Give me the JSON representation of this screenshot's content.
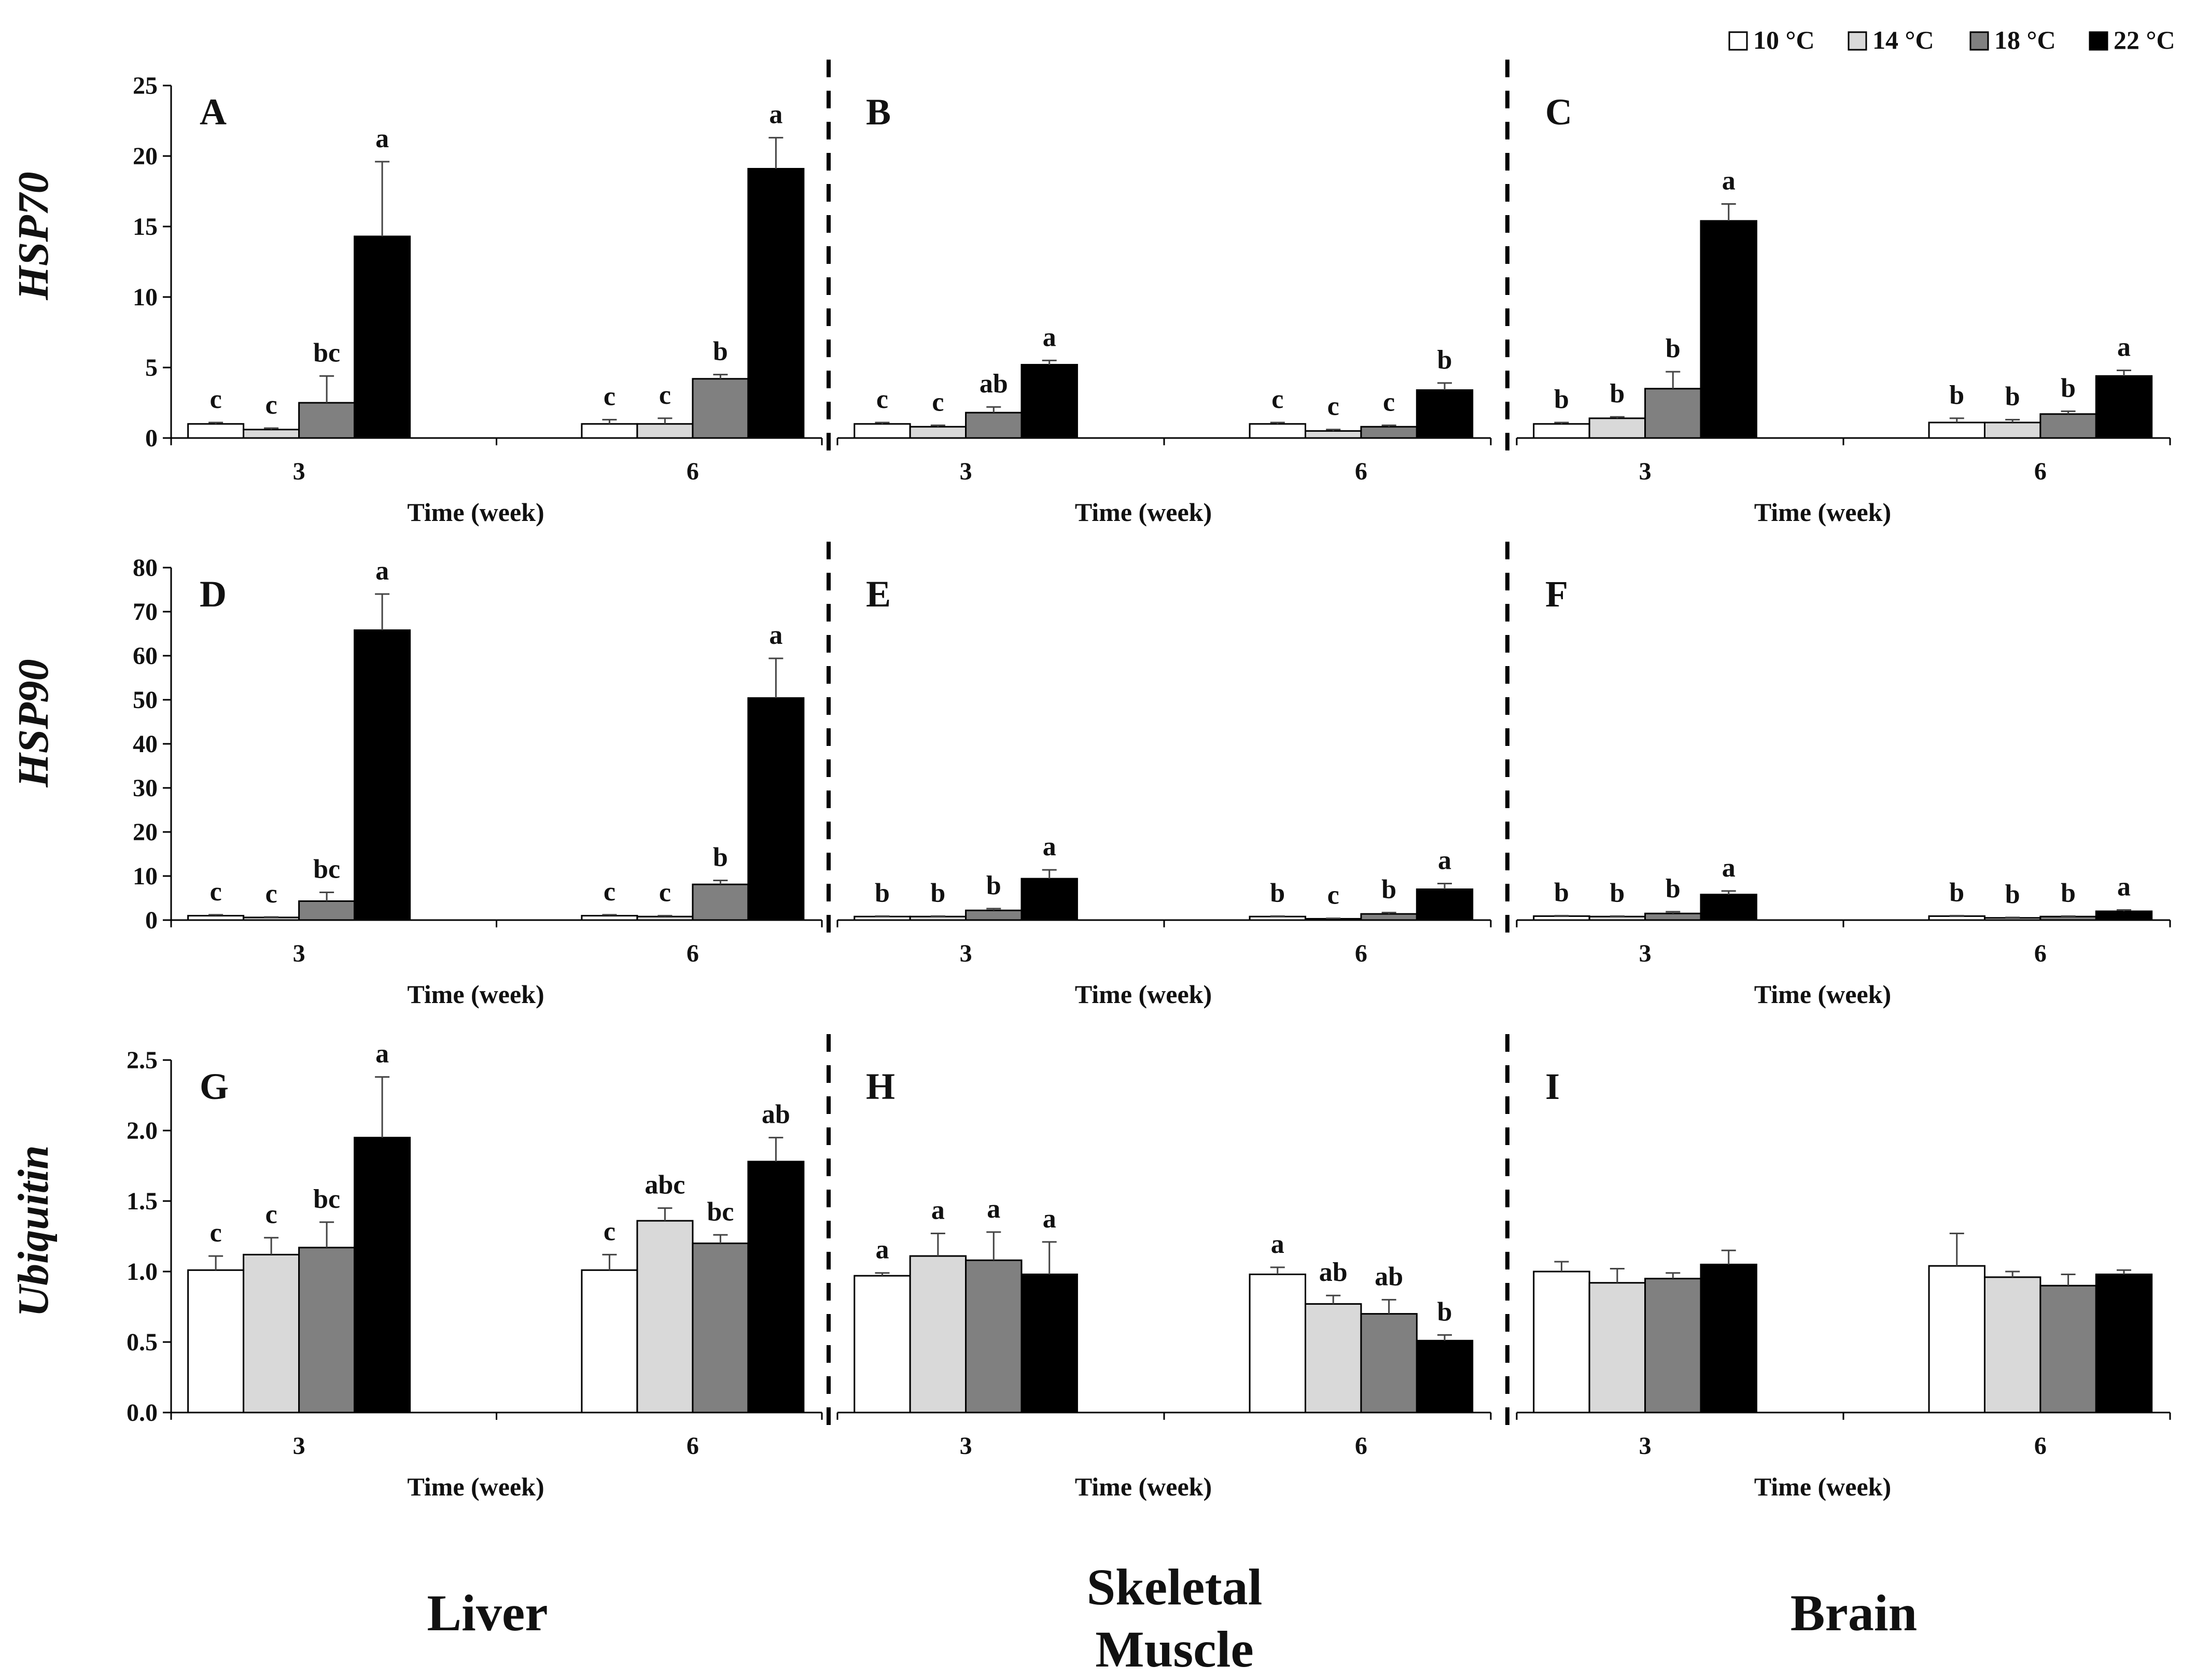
{
  "legend": [
    {
      "label": "10 °C",
      "color": "#ffffff"
    },
    {
      "label": "14 °C",
      "color": "#d9d9d9"
    },
    {
      "label": "18 °C",
      "color": "#808080"
    },
    {
      "label": "22 °C",
      "color": "#000000"
    }
  ],
  "row_labels": [
    "HSP70",
    "HSP90",
    "Ubiquitin"
  ],
  "column_labels": [
    "Liver",
    "Skeletal Muscle",
    "Brain"
  ],
  "chart_data": [
    {
      "type": "bar",
      "panel": "A",
      "row": 0,
      "col": 0,
      "ylabel": "HSP70",
      "xlabel": "Time (week)",
      "categories": [
        "3",
        "6"
      ],
      "ylim": [
        0,
        25
      ],
      "yticks": [
        "0",
        "5",
        "10",
        "15",
        "20",
        "25"
      ],
      "series": [
        {
          "name": "10 °C",
          "values": [
            1.0,
            1.0
          ],
          "errors": [
            0.1,
            0.3
          ],
          "letters": [
            "c",
            "c"
          ]
        },
        {
          "name": "14 °C",
          "values": [
            0.6,
            1.0
          ],
          "errors": [
            0.1,
            0.4
          ],
          "letters": [
            "c",
            "c"
          ]
        },
        {
          "name": "18 °C",
          "values": [
            2.5,
            4.2
          ],
          "errors": [
            1.9,
            0.3
          ],
          "letters": [
            "bc",
            "b"
          ]
        },
        {
          "name": "22 °C",
          "values": [
            14.3,
            19.1
          ],
          "errors": [
            5.3,
            2.2
          ],
          "letters": [
            "a",
            "a"
          ]
        }
      ]
    },
    {
      "type": "bar",
      "panel": "B",
      "row": 0,
      "col": 1,
      "ylabel": "",
      "xlabel": "Time (week)",
      "categories": [
        "3",
        "6"
      ],
      "ylim": [
        0,
        25
      ],
      "yticks": [],
      "series": [
        {
          "name": "10 °C",
          "values": [
            1.0,
            1.0
          ],
          "errors": [
            0.1,
            0.1
          ],
          "letters": [
            "c",
            "c"
          ]
        },
        {
          "name": "14 °C",
          "values": [
            0.8,
            0.5
          ],
          "errors": [
            0.1,
            0.1
          ],
          "letters": [
            "c",
            "c"
          ]
        },
        {
          "name": "18 °C",
          "values": [
            1.8,
            0.8
          ],
          "errors": [
            0.4,
            0.1
          ],
          "letters": [
            "ab",
            "c"
          ]
        },
        {
          "name": "22 °C",
          "values": [
            5.2,
            3.4
          ],
          "errors": [
            0.3,
            0.5
          ],
          "letters": [
            "a",
            "b"
          ]
        }
      ]
    },
    {
      "type": "bar",
      "panel": "C",
      "row": 0,
      "col": 2,
      "ylabel": "",
      "xlabel": "Time (week)",
      "categories": [
        "3",
        "6"
      ],
      "ylim": [
        0,
        25
      ],
      "yticks": [],
      "series": [
        {
          "name": "10 °C",
          "values": [
            1.0,
            1.1
          ],
          "errors": [
            0.1,
            0.3
          ],
          "letters": [
            "b",
            "b"
          ]
        },
        {
          "name": "14 °C",
          "values": [
            1.4,
            1.1
          ],
          "errors": [
            0.1,
            0.2
          ],
          "letters": [
            "b",
            "b"
          ]
        },
        {
          "name": "18 °C",
          "values": [
            3.5,
            1.7
          ],
          "errors": [
            1.2,
            0.2
          ],
          "letters": [
            "b",
            "b"
          ]
        },
        {
          "name": "22 °C",
          "values": [
            15.4,
            4.4
          ],
          "errors": [
            1.2,
            0.4
          ],
          "letters": [
            "a",
            "a"
          ]
        }
      ]
    },
    {
      "type": "bar",
      "panel": "D",
      "row": 1,
      "col": 0,
      "ylabel": "HSP90",
      "xlabel": "Time (week)",
      "categories": [
        "3",
        "6"
      ],
      "ylim": [
        0,
        80
      ],
      "yticks": [
        "0",
        "10",
        "20",
        "30",
        "40",
        "50",
        "60",
        "70",
        "80"
      ],
      "series": [
        {
          "name": "10 °C",
          "values": [
            1.0,
            1.0
          ],
          "errors": [
            0.2,
            0.2
          ],
          "letters": [
            "c",
            "c"
          ]
        },
        {
          "name": "14 °C",
          "values": [
            0.6,
            0.8
          ],
          "errors": [
            0.1,
            0.2
          ],
          "letters": [
            "c",
            "c"
          ]
        },
        {
          "name": "18 °C",
          "values": [
            4.3,
            8.1
          ],
          "errors": [
            2.0,
            0.9
          ],
          "letters": [
            "bc",
            "b"
          ]
        },
        {
          "name": "22 °C",
          "values": [
            65.8,
            50.4
          ],
          "errors": [
            8.2,
            9.0
          ],
          "letters": [
            "a",
            "a"
          ]
        }
      ]
    },
    {
      "type": "bar",
      "panel": "E",
      "row": 1,
      "col": 1,
      "ylabel": "",
      "xlabel": "Time (week)",
      "categories": [
        "3",
        "6"
      ],
      "ylim": [
        0,
        80
      ],
      "yticks": [],
      "series": [
        {
          "name": "10 °C",
          "values": [
            0.8,
            0.8
          ],
          "errors": [
            0.1,
            0.1
          ],
          "letters": [
            "b",
            "b"
          ]
        },
        {
          "name": "14 °C",
          "values": [
            0.8,
            0.3
          ],
          "errors": [
            0.1,
            0.1
          ],
          "letters": [
            "b",
            "c"
          ]
        },
        {
          "name": "18 °C",
          "values": [
            2.2,
            1.4
          ],
          "errors": [
            0.4,
            0.3
          ],
          "letters": [
            "b",
            "b"
          ]
        },
        {
          "name": "22 °C",
          "values": [
            9.4,
            7.0
          ],
          "errors": [
            2.0,
            1.3
          ],
          "letters": [
            "a",
            "a"
          ]
        }
      ]
    },
    {
      "type": "bar",
      "panel": "F",
      "row": 1,
      "col": 2,
      "ylabel": "",
      "xlabel": "Time (week)",
      "categories": [
        "3",
        "6"
      ],
      "ylim": [
        0,
        80
      ],
      "yticks": [],
      "series": [
        {
          "name": "10 °C",
          "values": [
            0.9,
            0.9
          ],
          "errors": [
            0.1,
            0.1
          ],
          "letters": [
            "b",
            "b"
          ]
        },
        {
          "name": "14 °C",
          "values": [
            0.8,
            0.5
          ],
          "errors": [
            0.1,
            0.1
          ],
          "letters": [
            "b",
            "b"
          ]
        },
        {
          "name": "18 °C",
          "values": [
            1.5,
            0.8
          ],
          "errors": [
            0.4,
            0.1
          ],
          "letters": [
            "b",
            "b"
          ]
        },
        {
          "name": "22 °C",
          "values": [
            5.8,
            2.0
          ],
          "errors": [
            0.8,
            0.3
          ],
          "letters": [
            "a",
            "a"
          ]
        }
      ]
    },
    {
      "type": "bar",
      "panel": "G",
      "row": 2,
      "col": 0,
      "ylabel": "Ubiquitin",
      "xlabel": "Time (week)",
      "categories": [
        "3",
        "6"
      ],
      "ylim": [
        0,
        2.5
      ],
      "yticks": [
        "0.0",
        "0.5",
        "1.0",
        "1.5",
        "2.0",
        "2.5"
      ],
      "series": [
        {
          "name": "10 °C",
          "values": [
            1.01,
            1.01
          ],
          "errors": [
            0.1,
            0.11
          ],
          "letters": [
            "c",
            "c"
          ]
        },
        {
          "name": "14 °C",
          "values": [
            1.12,
            1.36
          ],
          "errors": [
            0.12,
            0.09
          ],
          "letters": [
            "c",
            "abc"
          ]
        },
        {
          "name": "18 °C",
          "values": [
            1.17,
            1.2
          ],
          "errors": [
            0.18,
            0.06
          ],
          "letters": [
            "bc",
            "bc"
          ]
        },
        {
          "name": "22 °C",
          "values": [
            1.95,
            1.78
          ],
          "errors": [
            0.43,
            0.17
          ],
          "letters": [
            "a",
            "ab"
          ]
        }
      ]
    },
    {
      "type": "bar",
      "panel": "H",
      "row": 2,
      "col": 1,
      "ylabel": "",
      "xlabel": "Time (week)",
      "categories": [
        "3",
        "6"
      ],
      "ylim": [
        0,
        2.5
      ],
      "yticks": [],
      "series": [
        {
          "name": "10 °C",
          "values": [
            0.97,
            0.98
          ],
          "errors": [
            0.02,
            0.05
          ],
          "letters": [
            "a",
            "a"
          ]
        },
        {
          "name": "14 °C",
          "values": [
            1.11,
            0.77
          ],
          "errors": [
            0.16,
            0.06
          ],
          "letters": [
            "a",
            "ab"
          ]
        },
        {
          "name": "18 °C",
          "values": [
            1.08,
            0.7
          ],
          "errors": [
            0.2,
            0.1
          ],
          "letters": [
            "a",
            "ab"
          ]
        },
        {
          "name": "22 °C",
          "values": [
            0.98,
            0.51
          ],
          "errors": [
            0.23,
            0.04
          ],
          "letters": [
            "a",
            "b"
          ]
        }
      ]
    },
    {
      "type": "bar",
      "panel": "I",
      "row": 2,
      "col": 2,
      "ylabel": "",
      "xlabel": "Time (week)",
      "categories": [
        "3",
        "6"
      ],
      "ylim": [
        0,
        2.5
      ],
      "yticks": [],
      "series": [
        {
          "name": "10 °C",
          "values": [
            1.0,
            1.04
          ],
          "errors": [
            0.07,
            0.23
          ],
          "letters": [
            "",
            ""
          ]
        },
        {
          "name": "14 °C",
          "values": [
            0.92,
            0.96
          ],
          "errors": [
            0.1,
            0.04
          ],
          "letters": [
            "",
            ""
          ]
        },
        {
          "name": "18 °C",
          "values": [
            0.95,
            0.9
          ],
          "errors": [
            0.04,
            0.08
          ],
          "letters": [
            "",
            ""
          ]
        },
        {
          "name": "22 °C",
          "values": [
            1.05,
            0.98
          ],
          "errors": [
            0.1,
            0.03
          ],
          "letters": [
            "",
            ""
          ]
        }
      ]
    }
  ]
}
